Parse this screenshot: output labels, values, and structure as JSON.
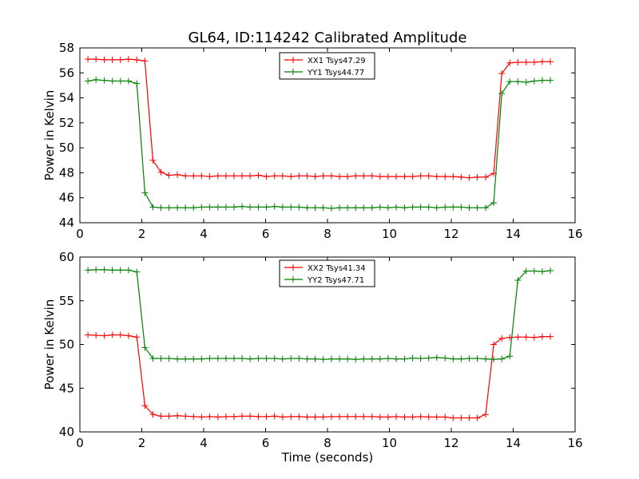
{
  "figure": {
    "title": "GL64, ID:114242 Calibrated Amplitude",
    "xlabel": "Time (seconds)"
  },
  "chart_data": [
    {
      "type": "line",
      "ylabel": "Power in Kelvin",
      "xlim": [
        0,
        16
      ],
      "ylim": [
        44,
        58
      ],
      "xticks": [
        0,
        2,
        4,
        6,
        8,
        10,
        12,
        14,
        16
      ],
      "yticks": [
        44,
        46,
        48,
        50,
        52,
        54,
        56,
        58
      ],
      "grid": false,
      "legend_position": "top-center",
      "x": [
        0.26,
        0.52,
        0.79,
        1.05,
        1.31,
        1.57,
        1.84,
        2.1,
        2.36,
        2.62,
        2.88,
        3.15,
        3.41,
        3.67,
        3.93,
        4.19,
        4.46,
        4.72,
        4.98,
        5.24,
        5.5,
        5.77,
        6.03,
        6.29,
        6.55,
        6.82,
        7.08,
        7.34,
        7.6,
        7.86,
        8.13,
        8.39,
        8.65,
        8.91,
        9.17,
        9.44,
        9.7,
        9.96,
        10.22,
        10.49,
        10.75,
        11.01,
        11.27,
        11.53,
        11.8,
        12.06,
        12.32,
        12.58,
        12.84,
        13.11,
        13.37,
        13.63,
        13.89,
        14.15,
        14.42,
        14.68,
        14.94,
        15.2
      ],
      "series": [
        {
          "name": "XX1 Tsys47.29",
          "color": "#ff0000",
          "values": [
            57.1,
            57.1,
            57.05,
            57.05,
            57.05,
            57.1,
            57.05,
            56.95,
            49.0,
            48.05,
            47.8,
            47.85,
            47.75,
            47.75,
            47.75,
            47.7,
            47.75,
            47.75,
            47.75,
            47.75,
            47.75,
            47.8,
            47.7,
            47.75,
            47.75,
            47.7,
            47.75,
            47.75,
            47.7,
            47.75,
            47.75,
            47.7,
            47.7,
            47.75,
            47.75,
            47.75,
            47.7,
            47.7,
            47.7,
            47.7,
            47.7,
            47.75,
            47.75,
            47.7,
            47.7,
            47.7,
            47.65,
            47.6,
            47.65,
            47.65,
            47.95,
            55.95,
            56.8,
            56.85,
            56.85,
            56.85,
            56.9,
            56.9
          ]
        },
        {
          "name": "YY1 Tsys44.77",
          "color": "#008000",
          "values": [
            55.35,
            55.45,
            55.4,
            55.35,
            55.35,
            55.35,
            55.15,
            46.4,
            45.25,
            45.2,
            45.2,
            45.2,
            45.2,
            45.2,
            45.25,
            45.25,
            45.25,
            45.25,
            45.25,
            45.3,
            45.25,
            45.25,
            45.25,
            45.3,
            45.25,
            45.25,
            45.25,
            45.2,
            45.2,
            45.2,
            45.15,
            45.2,
            45.2,
            45.2,
            45.2,
            45.2,
            45.25,
            45.2,
            45.25,
            45.2,
            45.25,
            45.25,
            45.25,
            45.2,
            45.25,
            45.25,
            45.25,
            45.2,
            45.2,
            45.2,
            45.6,
            54.35,
            55.3,
            55.3,
            55.25,
            55.35,
            55.4,
            55.4
          ]
        }
      ]
    },
    {
      "type": "line",
      "ylabel": "Power in Kelvin",
      "xlim": [
        0,
        16
      ],
      "ylim": [
        40,
        60
      ],
      "xticks": [
        0,
        2,
        4,
        6,
        8,
        10,
        12,
        14,
        16
      ],
      "yticks": [
        40,
        45,
        50,
        55,
        60
      ],
      "grid": false,
      "legend_position": "top-center",
      "x": [
        0.26,
        0.52,
        0.79,
        1.05,
        1.31,
        1.57,
        1.84,
        2.1,
        2.36,
        2.62,
        2.88,
        3.15,
        3.41,
        3.67,
        3.93,
        4.19,
        4.46,
        4.72,
        4.98,
        5.24,
        5.5,
        5.77,
        6.03,
        6.29,
        6.55,
        6.82,
        7.08,
        7.34,
        7.6,
        7.86,
        8.13,
        8.39,
        8.65,
        8.91,
        9.17,
        9.44,
        9.7,
        9.96,
        10.22,
        10.49,
        10.75,
        11.01,
        11.27,
        11.53,
        11.8,
        12.06,
        12.32,
        12.58,
        12.84,
        13.11,
        13.37,
        13.63,
        13.89,
        14.15,
        14.42,
        14.68,
        14.94,
        15.2
      ],
      "series": [
        {
          "name": "XX2 Tsys41.34",
          "color": "#ff0000",
          "values": [
            51.1,
            51.05,
            51.0,
            51.1,
            51.1,
            51.0,
            50.85,
            43.0,
            42.0,
            41.8,
            41.8,
            41.85,
            41.8,
            41.75,
            41.7,
            41.75,
            41.7,
            41.75,
            41.75,
            41.8,
            41.8,
            41.75,
            41.75,
            41.8,
            41.7,
            41.75,
            41.75,
            41.7,
            41.7,
            41.7,
            41.75,
            41.75,
            41.75,
            41.75,
            41.75,
            41.75,
            41.7,
            41.7,
            41.75,
            41.7,
            41.7,
            41.75,
            41.7,
            41.7,
            41.7,
            41.6,
            41.6,
            41.6,
            41.6,
            42.0,
            50.0,
            50.7,
            50.8,
            50.85,
            50.85,
            50.8,
            50.9,
            50.9
          ]
        },
        {
          "name": "YY2 Tsys47.71",
          "color": "#008000",
          "values": [
            58.5,
            58.55,
            58.55,
            58.5,
            58.5,
            58.5,
            58.3,
            49.65,
            48.4,
            48.4,
            48.4,
            48.35,
            48.35,
            48.35,
            48.35,
            48.4,
            48.4,
            48.4,
            48.4,
            48.4,
            48.35,
            48.4,
            48.4,
            48.4,
            48.35,
            48.4,
            48.4,
            48.35,
            48.35,
            48.3,
            48.35,
            48.35,
            48.35,
            48.3,
            48.35,
            48.35,
            48.35,
            48.4,
            48.35,
            48.35,
            48.45,
            48.4,
            48.45,
            48.5,
            48.45,
            48.35,
            48.35,
            48.4,
            48.4,
            48.35,
            48.3,
            48.35,
            48.65,
            57.35,
            58.4,
            58.4,
            58.35,
            58.45
          ]
        }
      ]
    }
  ]
}
